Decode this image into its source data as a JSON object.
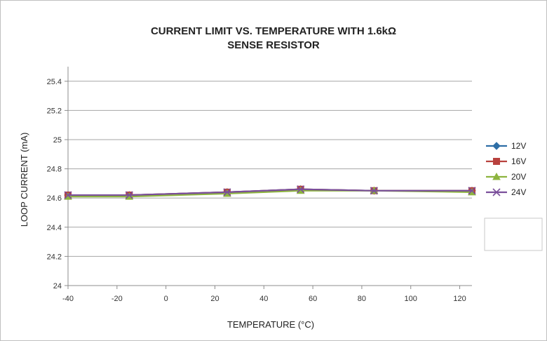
{
  "chart_data": {
    "type": "line",
    "title": [
      "CURRENT LIMIT VS. TEMPERATURE WITH 1.6kΩ",
      "SENSE RESISTOR"
    ],
    "xlabel": "TEMPERATURE (°C)",
    "ylabel": "LOOP CURRENT (mA)",
    "xlim": [
      -40,
      125
    ],
    "ylim": [
      24,
      25.5
    ],
    "xticks": [
      -40,
      -20,
      0,
      20,
      40,
      60,
      80,
      100,
      120
    ],
    "xtick_labels": [
      "-40",
      "-20",
      "0",
      "20",
      "40",
      "60",
      "80",
      "100",
      "120"
    ],
    "yticks": [
      24,
      24.2,
      24.4,
      24.6,
      24.8,
      25,
      25.2,
      25.4
    ],
    "ytick_labels": [
      "24",
      "24.2",
      "24.4",
      "24.6",
      "24.8",
      "25",
      "25.2",
      "25.4"
    ],
    "grid": "horizontal",
    "legend_position": "right",
    "x": [
      -40,
      -15,
      25,
      55,
      85,
      125
    ],
    "series": [
      {
        "name": "12V",
        "color": "#2e6ea6",
        "marker": "diamond",
        "values": [
          24.62,
          24.62,
          24.64,
          24.66,
          24.65,
          24.65
        ]
      },
      {
        "name": "16V",
        "color": "#b8413e",
        "marker": "square",
        "values": [
          24.62,
          24.62,
          24.64,
          24.66,
          24.65,
          24.65
        ]
      },
      {
        "name": "20V",
        "color": "#8db43f",
        "marker": "triangle",
        "values": [
          24.61,
          24.61,
          24.63,
          24.65,
          24.65,
          24.64
        ]
      },
      {
        "name": "24V",
        "color": "#7a4f9b",
        "marker": "x",
        "values": [
          24.62,
          24.62,
          24.64,
          24.66,
          24.65,
          24.65
        ]
      }
    ]
  }
}
